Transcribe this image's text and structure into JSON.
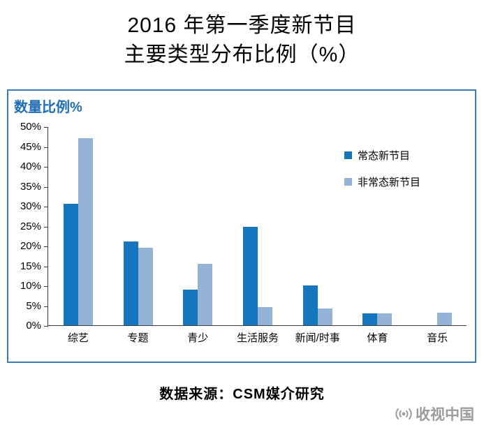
{
  "title": {
    "line1": "2016 年第一季度新节目",
    "line2": "主要类型分布比例（%）"
  },
  "chart": {
    "axis_title": "数量比例%"
  },
  "chart_data": {
    "type": "bar",
    "title": "2016 年第一季度新节目主要类型分布比例（%）",
    "categories": [
      "综艺",
      "专题",
      "青少",
      "生活服务",
      "新闻/时事",
      "体育",
      "音乐"
    ],
    "series": [
      {
        "name": "常态新节目",
        "color": "#1676bd",
        "values": [
          30.5,
          21,
          9,
          24.7,
          10,
          3,
          0
        ]
      },
      {
        "name": "非常态新节目",
        "color": "#95b3d7",
        "values": [
          47,
          19.5,
          15.5,
          4.6,
          4.2,
          3,
          3.2
        ]
      }
    ],
    "xlabel": "",
    "ylabel": "数量比例%",
    "ylim": [
      0,
      50
    ],
    "ytick_step": 5,
    "ytick_format": "percent",
    "grid": false,
    "legend_position": "right-inside"
  },
  "footer": {
    "source": "数据来源：CSM媒介研究"
  },
  "watermark": {
    "text": "收视中国"
  }
}
